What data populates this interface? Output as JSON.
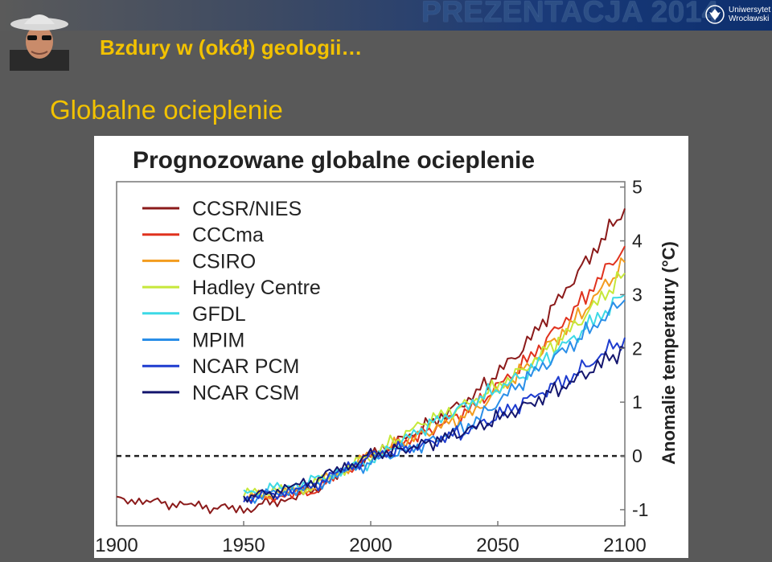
{
  "header": {
    "subtitle": "Bzdury w (okół) geologii…",
    "presentation": "PREZENTACJA 2014",
    "university_line1": "Uniwersytet",
    "university_line2": "Wrocławski",
    "avatar_icon": "man-with-cowboy-hat-avatar",
    "emblem_icon": "university-eagle-emblem"
  },
  "slide": {
    "heading": "Globalne ocieplenie"
  },
  "colors": {
    "accent": "#f2c200",
    "background": "#595959",
    "presentation_text": "#2d4f85"
  },
  "chart_data": {
    "type": "line",
    "title": "Prognozowane globalne ocieplenie",
    "xlabel": "",
    "ylabel": "Anomalie temperatury (°C)",
    "xlim": [
      1900,
      2100
    ],
    "ylim": [
      -1.3,
      5.1
    ],
    "x_ticks": [
      "1900",
      "1950",
      "2000",
      "2050",
      "2100"
    ],
    "y_ticks": [
      "5",
      "4",
      "3",
      "2",
      "1",
      "0",
      "-1"
    ],
    "reference_line_y": 0,
    "legend_position": "top-left",
    "series": [
      {
        "name": "CCSR/NIES",
        "color": "#8b1a1a",
        "x": [
          1900,
          1925,
          1950,
          1975,
          2000,
          2020,
          2040,
          2060,
          2080,
          2100
        ],
        "values": [
          -0.8,
          -0.9,
          -1.0,
          -0.7,
          0.0,
          0.5,
          1.1,
          2.0,
          3.3,
          4.6
        ]
      },
      {
        "name": "CCCma",
        "color": "#e0321e",
        "x": [
          1950,
          1975,
          2000,
          2020,
          2040,
          2060,
          2080,
          2100
        ],
        "values": [
          -0.8,
          -0.7,
          0.0,
          0.4,
          0.9,
          1.7,
          2.7,
          3.9
        ]
      },
      {
        "name": "CSIRO",
        "color": "#f39c1e",
        "x": [
          1950,
          1975,
          2000,
          2020,
          2040,
          2060,
          2080,
          2100
        ],
        "values": [
          -0.8,
          -0.6,
          0.0,
          0.4,
          0.8,
          1.6,
          2.5,
          3.6
        ]
      },
      {
        "name": "Hadley Centre",
        "color": "#c6e83a",
        "x": [
          1950,
          1975,
          2000,
          2020,
          2040,
          2060,
          2080,
          2100
        ],
        "values": [
          -0.7,
          -0.6,
          0.0,
          0.6,
          1.0,
          1.6,
          2.4,
          3.4
        ]
      },
      {
        "name": "GFDL",
        "color": "#3dd9e6",
        "x": [
          1950,
          1975,
          2000,
          2020,
          2040,
          2060,
          2080,
          2100
        ],
        "values": [
          -0.7,
          -0.5,
          -0.1,
          0.5,
          1.0,
          1.5,
          2.2,
          3.0
        ]
      },
      {
        "name": "MPIM",
        "color": "#2a8ee8",
        "x": [
          1950,
          1975,
          2000,
          2020,
          2040,
          2060,
          2080,
          2100
        ],
        "values": [
          -0.8,
          -0.6,
          -0.1,
          0.2,
          0.6,
          1.4,
          2.1,
          2.9
        ]
      },
      {
        "name": "NCAR PCM",
        "color": "#1e3ccf",
        "x": [
          1950,
          1975,
          2000,
          2020,
          2040,
          2060,
          2080,
          2100
        ],
        "values": [
          -0.8,
          -0.6,
          0.0,
          0.2,
          0.5,
          1.0,
          1.5,
          2.2
        ]
      },
      {
        "name": "NCAR CSM",
        "color": "#14166e",
        "x": [
          1950,
          1975,
          2000,
          2020,
          2040,
          2060,
          2080,
          2100
        ],
        "values": [
          -0.8,
          -0.5,
          0.0,
          0.2,
          0.5,
          0.9,
          1.4,
          2.0
        ]
      }
    ]
  }
}
